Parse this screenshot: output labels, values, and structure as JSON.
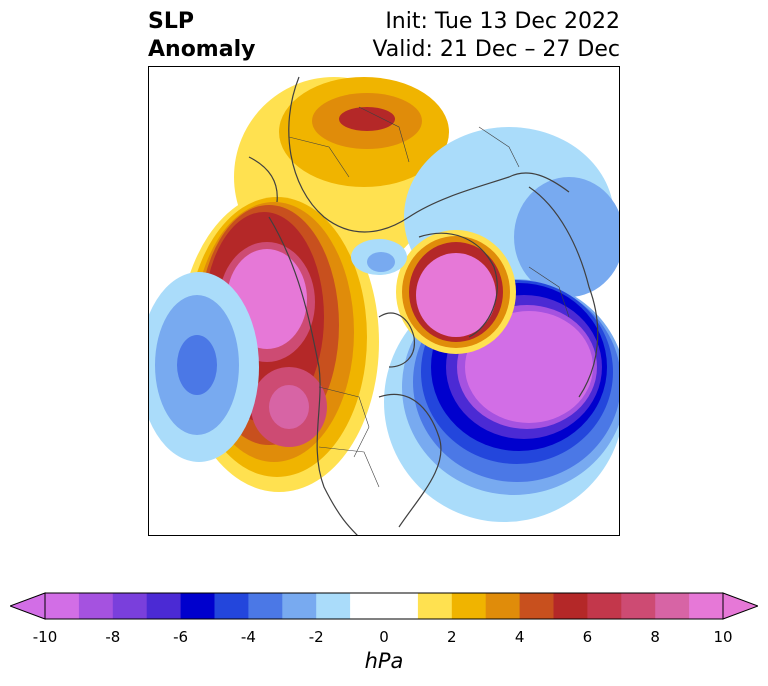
{
  "title": {
    "left_line1": "SLP",
    "left_line2": "Anomaly",
    "right_line1": "Init: Tue 13 Dec 2022",
    "right_line2": "Valid: 21 Dec – 27 Dec"
  },
  "colorbar": {
    "unit": "hPa",
    "tick_labels": [
      "-10",
      "-8",
      "-6",
      "-4",
      "-2",
      "0",
      "2",
      "4",
      "6",
      "8",
      "10"
    ],
    "extend": "both",
    "min": -10,
    "max": 10,
    "step": 1,
    "colors": [
      "#d26ee6",
      "#a552e0",
      "#7a3fdc",
      "#4b2ad4",
      "#0000cd",
      "#2346dc",
      "#4b78e6",
      "#78aaf0",
      "#aadcfa",
      "#ffffff",
      "#ffffff",
      "#ffe150",
      "#f0b400",
      "#e08c0a",
      "#c8501e",
      "#b42828",
      "#c3374b",
      "#cd4b73",
      "#d764a5",
      "#e678d7"
    ]
  },
  "map": {
    "projection": "north-polar-stereographic",
    "field": "sea-level-pressure-anomaly"
  }
}
